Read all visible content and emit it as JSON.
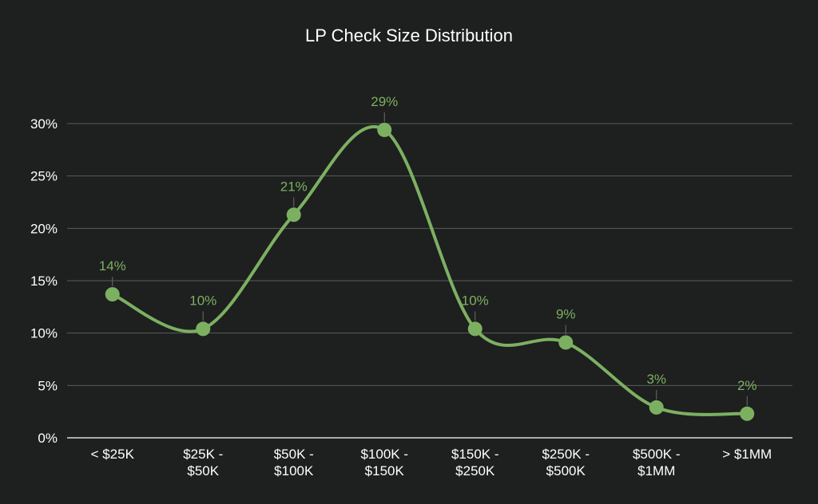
{
  "chart_data": {
    "type": "line",
    "title": "LP Check Size Distribution",
    "categories": [
      [
        "< $25K"
      ],
      [
        "$25K -",
        "$50K"
      ],
      [
        "$50K -",
        "$100K"
      ],
      [
        "$100K -",
        "$150K"
      ],
      [
        "$150K -",
        "$250K"
      ],
      [
        "$250K -",
        "$500K"
      ],
      [
        "$500K -",
        "$1MM"
      ],
      [
        "> $1MM"
      ]
    ],
    "values": [
      13.7,
      10.4,
      21.3,
      29.4,
      10.4,
      9.1,
      2.9,
      2.3
    ],
    "data_labels": [
      "14%",
      "10%",
      "21%",
      "29%",
      "10%",
      "9%",
      "3%",
      "2%"
    ],
    "y_ticks": [
      0,
      5,
      10,
      15,
      20,
      25,
      30
    ],
    "y_tick_labels": [
      "0%",
      "5%",
      "10%",
      "15%",
      "20%",
      "25%",
      "30%"
    ],
    "ylim": [
      0,
      30
    ],
    "xlabel": "",
    "ylabel": "",
    "grid": true,
    "smooth": true,
    "line_color": "#7cb061",
    "label_color": "#7cb061",
    "text_color": "#ffffff",
    "grid_color": "#5a5b5b",
    "background": "#1e1f1f"
  }
}
